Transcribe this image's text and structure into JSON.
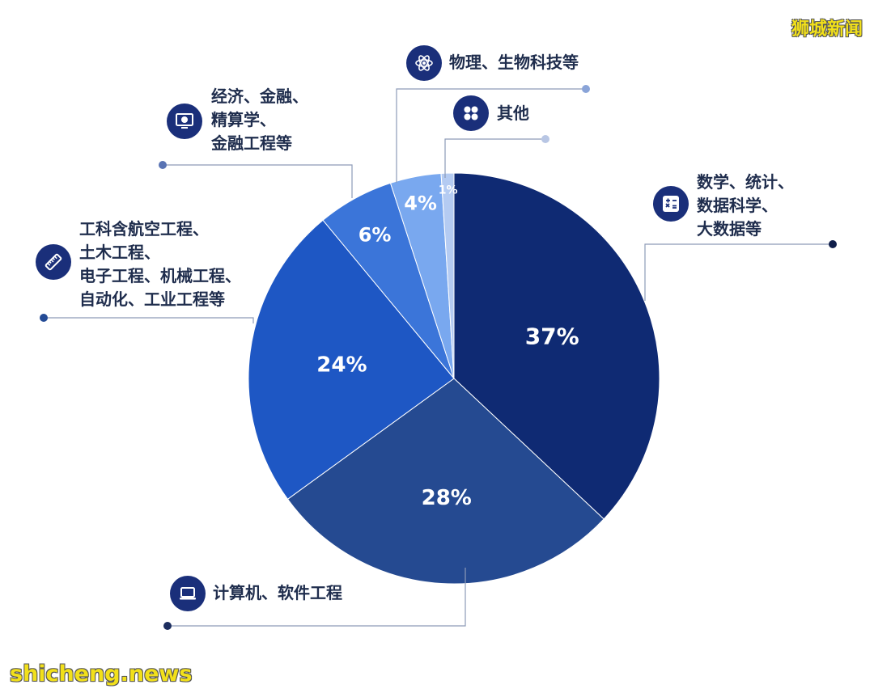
{
  "watermark": {
    "top": "狮城新闻",
    "bottom": "shicheng.news"
  },
  "chart_data": {
    "type": "pie",
    "title": "",
    "slices": [
      {
        "label": [
          "数学、统计、",
          "数据科学、",
          "大数据等"
        ],
        "value": 37,
        "display": "37%",
        "color": "#0f2a73",
        "icon": "calculator-icon"
      },
      {
        "label": [
          "计算机、软件工程"
        ],
        "value": 28,
        "display": "28%",
        "color": "#254a91",
        "icon": "laptop-icon"
      },
      {
        "label": [
          "工科含航空工程、",
          "土木工程、",
          "电子工程、机械工程、",
          "自动化、工业工程等"
        ],
        "value": 24,
        "display": "24%",
        "color": "#1e57c4",
        "icon": "ruler-icon"
      },
      {
        "label": [
          "经济、金融、",
          "精算学、",
          "金融工程等"
        ],
        "value": 6,
        "display": "6%",
        "color": "#3b75d9",
        "icon": "monitor-dollar-icon"
      },
      {
        "label": [
          "物理、生物科技等"
        ],
        "value": 4,
        "display": "4%",
        "color": "#79a8ef",
        "icon": "atom-icon"
      },
      {
        "label": [
          "其他"
        ],
        "value": 1,
        "display": "1%",
        "color": "#b4cbf2",
        "icon": "grid-dots-icon"
      }
    ],
    "grid": false,
    "legend": "callout labels with icons"
  }
}
